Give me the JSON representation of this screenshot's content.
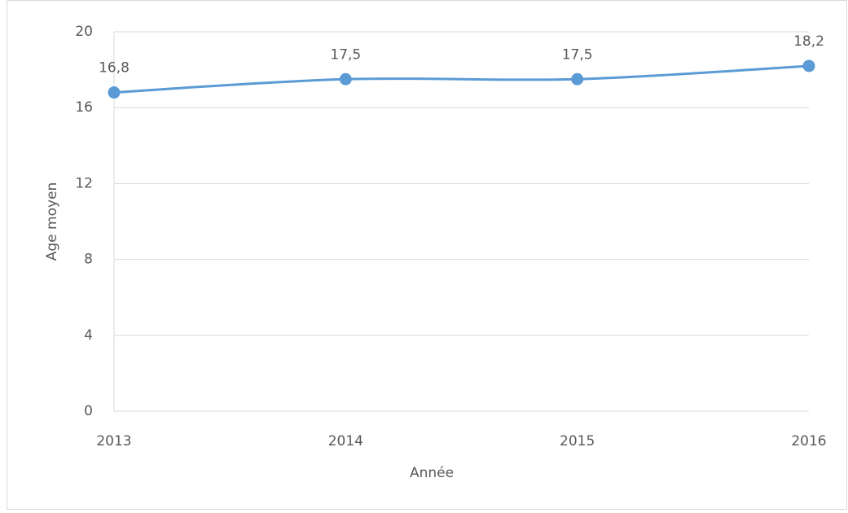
{
  "chart_data": {
    "type": "line",
    "x_label": "Année",
    "y_label": "Age moyen",
    "categories": [
      "2013",
      "2014",
      "2015",
      "2016"
    ],
    "series": [
      {
        "name": "Age moyen",
        "color": "#5b9bd5",
        "values": [
          16.8,
          17.5,
          17.5,
          18.2
        ],
        "value_labels": [
          "16,8",
          "17,5",
          "17,5",
          "18,2"
        ]
      }
    ],
    "ylim": [
      0,
      20
    ],
    "yticks": [
      0,
      4,
      8,
      12,
      16,
      20
    ],
    "grid": true,
    "smooth": true
  }
}
